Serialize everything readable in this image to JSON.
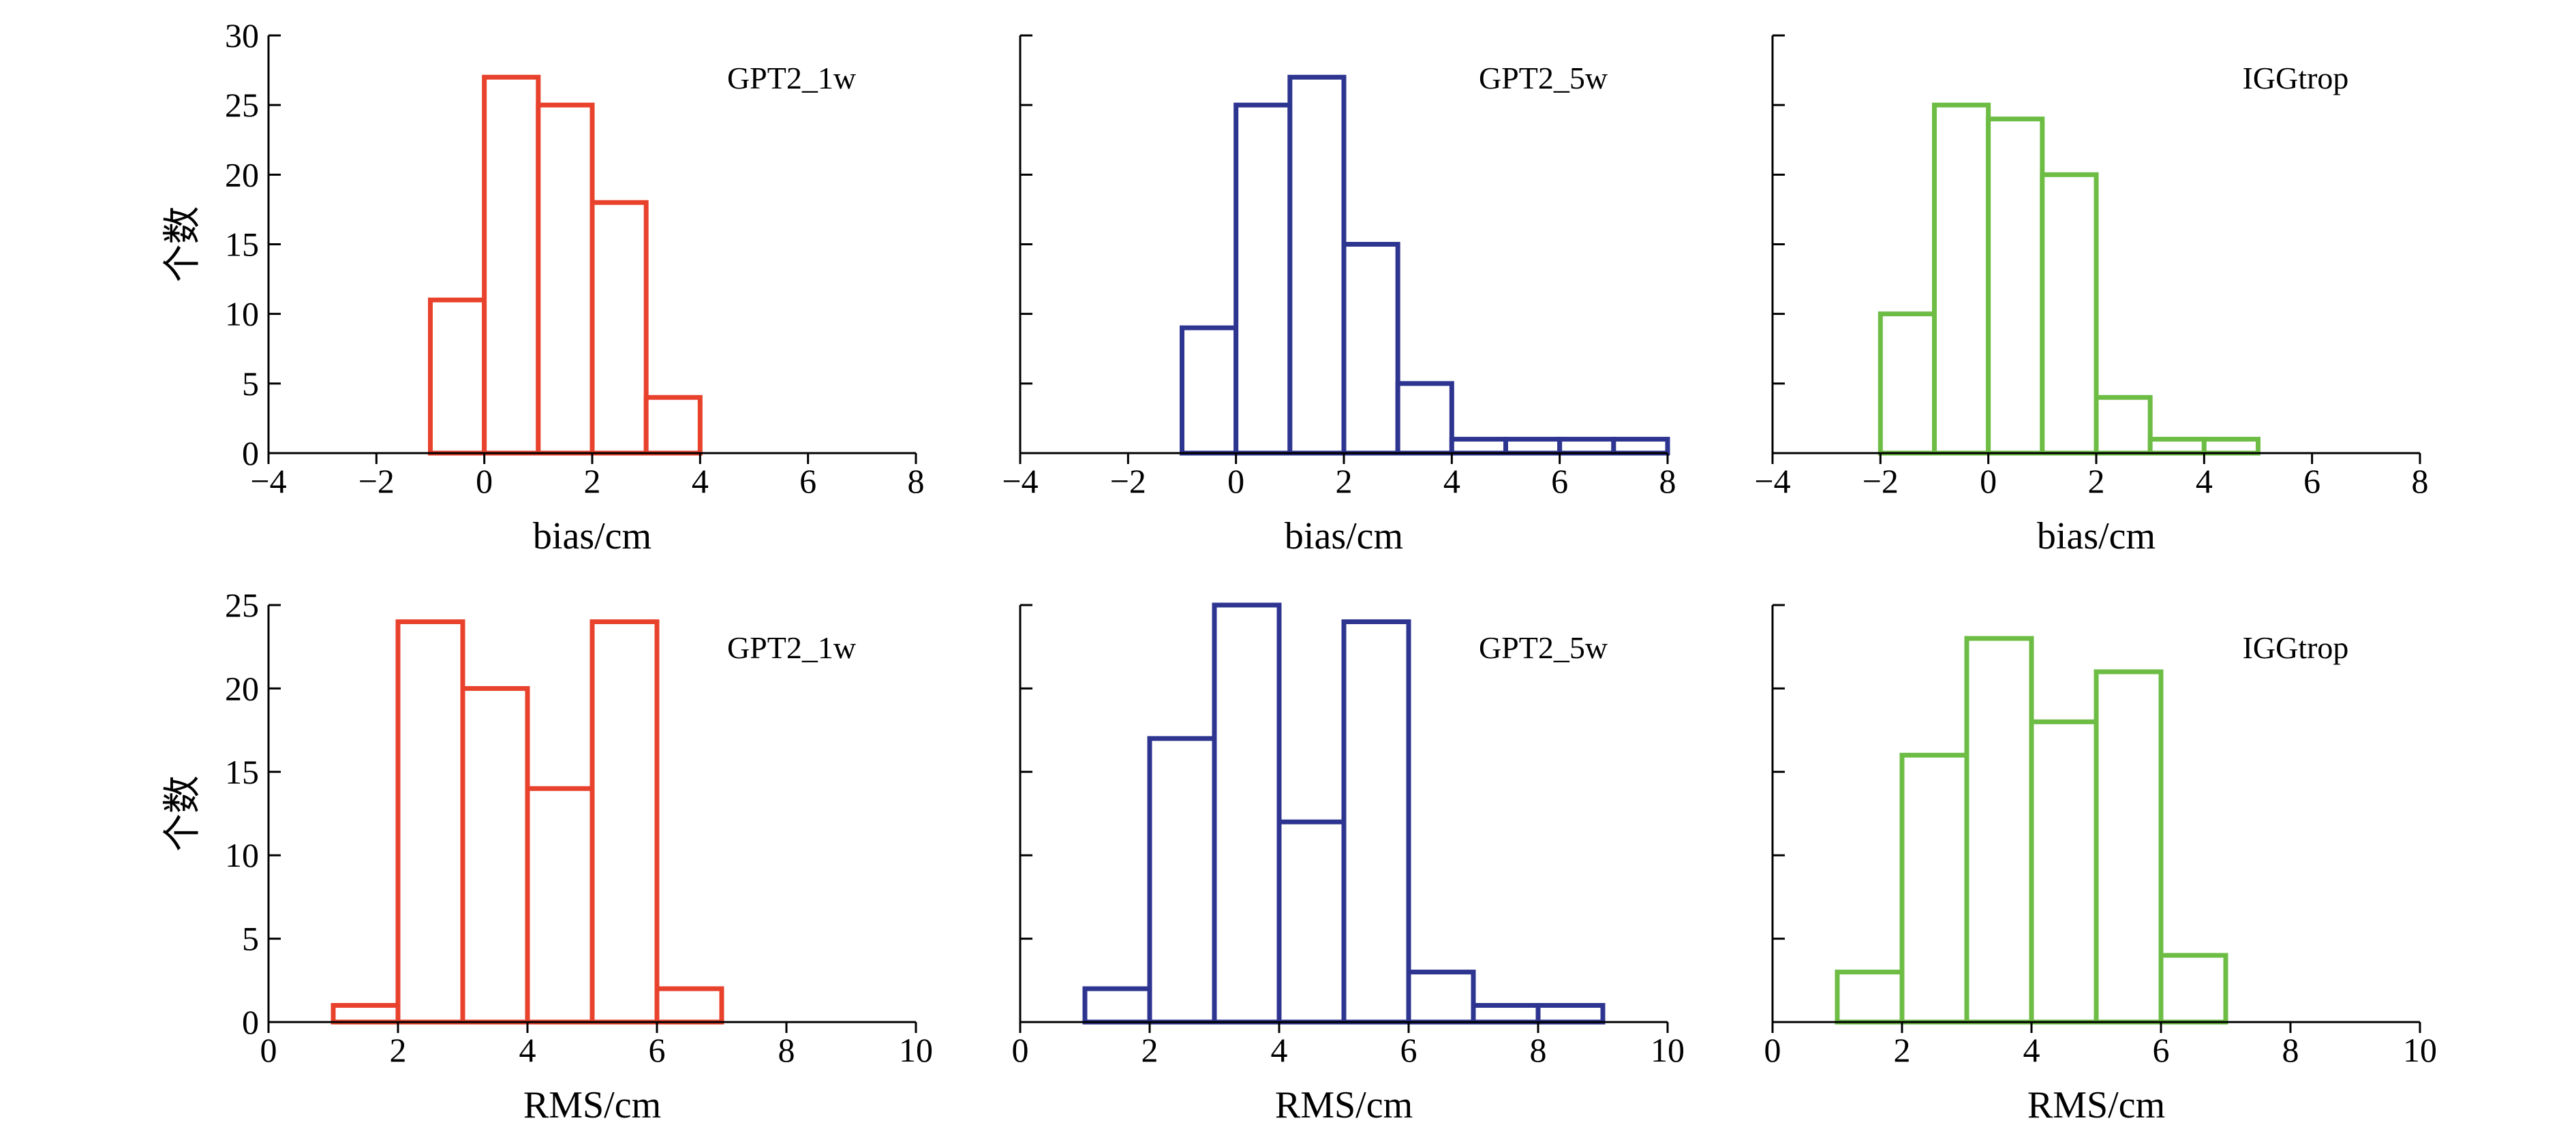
{
  "colors": {
    "red": "#e8412c",
    "blue": "#2e3590",
    "green": "#6dbd45"
  },
  "chart_data": [
    {
      "type": "bar",
      "histogram": true,
      "row": 0,
      "col": 0,
      "title": "GPT2_1w",
      "color": "#e8412c",
      "xlabel": "bias/cm",
      "ylabel": "个数",
      "xlim": [
        -4,
        8
      ],
      "ylim": [
        0,
        30
      ],
      "xticks": [
        -4,
        -2,
        0,
        2,
        4,
        6,
        8
      ],
      "yticks": [
        0,
        5,
        10,
        15,
        20,
        25,
        30
      ],
      "xtick_labels": [
        "−4",
        "−2",
        "0",
        "2",
        "4",
        "6",
        "8"
      ],
      "ytick_labels": [
        "0",
        "5",
        "10",
        "15",
        "20",
        "25",
        "30"
      ],
      "bin_edges": [
        -1,
        0,
        1,
        2,
        3,
        4
      ],
      "values": [
        11,
        27,
        25,
        18,
        4
      ]
    },
    {
      "type": "bar",
      "histogram": true,
      "row": 0,
      "col": 1,
      "title": "GPT2_5w",
      "color": "#2e3590",
      "xlabel": "bias/cm",
      "ylabel": "",
      "xlim": [
        -4,
        8
      ],
      "ylim": [
        0,
        30
      ],
      "xticks": [
        -4,
        -2,
        0,
        2,
        4,
        6,
        8
      ],
      "yticks": [
        0,
        5,
        10,
        15,
        20,
        25,
        30
      ],
      "xtick_labels": [
        "−4",
        "−2",
        "0",
        "2",
        "4",
        "6",
        "8"
      ],
      "ytick_labels": [],
      "bin_edges": [
        -1,
        0,
        1,
        2,
        3,
        4,
        5,
        6,
        7,
        8
      ],
      "values": [
        9,
        25,
        27,
        15,
        5,
        1,
        1,
        1,
        1
      ]
    },
    {
      "type": "bar",
      "histogram": true,
      "row": 0,
      "col": 2,
      "title": "IGGtrop",
      "color": "#6dbd45",
      "xlabel": "bias/cm",
      "ylabel": "",
      "xlim": [
        -4,
        8
      ],
      "ylim": [
        0,
        30
      ],
      "xticks": [
        -4,
        -2,
        0,
        2,
        4,
        6,
        8
      ],
      "yticks": [
        0,
        5,
        10,
        15,
        20,
        25,
        30
      ],
      "xtick_labels": [
        "−4",
        "−2",
        "0",
        "2",
        "4",
        "6",
        "8"
      ],
      "ytick_labels": [],
      "bin_edges": [
        -2,
        -1,
        0,
        1,
        2,
        3,
        4,
        5
      ],
      "values": [
        10,
        25,
        24,
        20,
        4,
        1,
        1
      ]
    },
    {
      "type": "bar",
      "histogram": true,
      "row": 1,
      "col": 0,
      "title": "GPT2_1w",
      "color": "#e8412c",
      "xlabel": "RMS/cm",
      "ylabel": "个数",
      "xlim": [
        0,
        10
      ],
      "ylim": [
        0,
        25
      ],
      "xticks": [
        0,
        2,
        4,
        6,
        8,
        10
      ],
      "yticks": [
        0,
        5,
        10,
        15,
        20,
        25
      ],
      "xtick_labels": [
        "0",
        "2",
        "4",
        "6",
        "8",
        "10"
      ],
      "ytick_labels": [
        "0",
        "5",
        "10",
        "15",
        "20",
        "25"
      ],
      "bin_edges": [
        1,
        2,
        3,
        4,
        5,
        6,
        7
      ],
      "values": [
        1,
        24,
        20,
        14,
        24,
        2
      ]
    },
    {
      "type": "bar",
      "histogram": true,
      "row": 1,
      "col": 1,
      "title": "GPT2_5w",
      "color": "#2e3590",
      "xlabel": "RMS/cm",
      "ylabel": "",
      "xlim": [
        0,
        10
      ],
      "ylim": [
        0,
        25
      ],
      "xticks": [
        0,
        2,
        4,
        6,
        8,
        10
      ],
      "yticks": [
        0,
        5,
        10,
        15,
        20,
        25
      ],
      "xtick_labels": [
        "0",
        "2",
        "4",
        "6",
        "8",
        "10"
      ],
      "ytick_labels": [],
      "bin_edges": [
        1,
        2,
        3,
        4,
        5,
        6,
        7,
        8,
        9
      ],
      "values": [
        2,
        17,
        25,
        12,
        24,
        3,
        1,
        1
      ]
    },
    {
      "type": "bar",
      "histogram": true,
      "row": 1,
      "col": 2,
      "title": "IGGtrop",
      "color": "#6dbd45",
      "xlabel": "RMS/cm",
      "ylabel": "",
      "xlim": [
        0,
        10
      ],
      "ylim": [
        0,
        25
      ],
      "xticks": [
        0,
        2,
        4,
        6,
        8,
        10
      ],
      "yticks": [
        0,
        5,
        10,
        15,
        20,
        25
      ],
      "xtick_labels": [
        "0",
        "2",
        "4",
        "6",
        "8",
        "10"
      ],
      "ytick_labels": [],
      "bin_edges": [
        1,
        2,
        3,
        4,
        5,
        6,
        7
      ],
      "values": [
        3,
        16,
        23,
        18,
        21,
        4
      ]
    }
  ]
}
